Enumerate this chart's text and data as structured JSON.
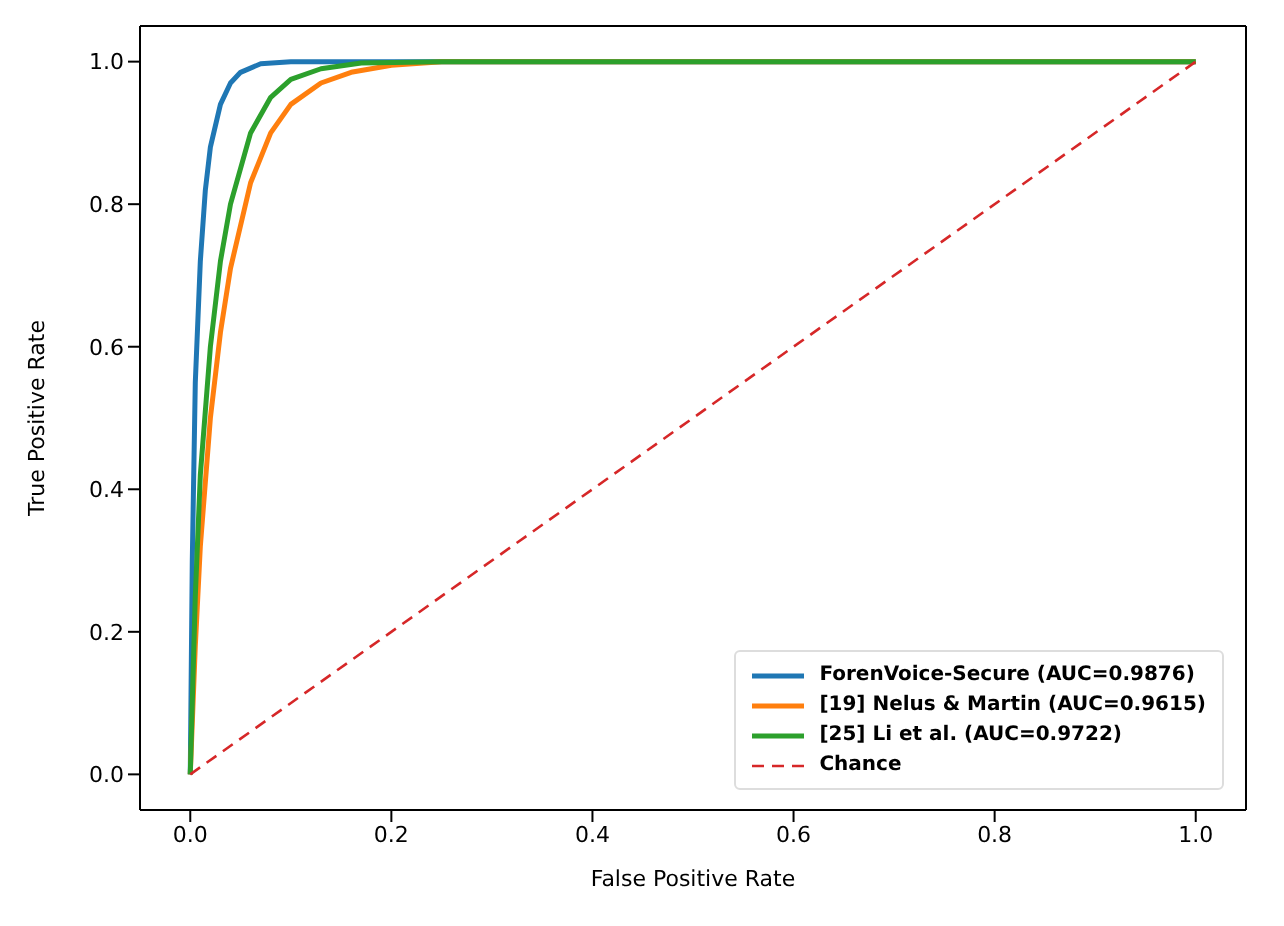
{
  "chart_data": {
    "type": "line",
    "xlabel": "False Positive Rate",
    "ylabel": "True Positive Rate",
    "xlim": [
      -0.05,
      1.05
    ],
    "ylim": [
      -0.05,
      1.05
    ],
    "xticks": [
      {
        "value": 0,
        "label": "0.0"
      },
      {
        "value": 0.2,
        "label": "0.2"
      },
      {
        "value": 0.4,
        "label": "0.4"
      },
      {
        "value": 0.6,
        "label": "0.6"
      },
      {
        "value": 0.8,
        "label": "0.8"
      },
      {
        "value": 1,
        "label": "1.0"
      }
    ],
    "yticks": [
      {
        "value": 0,
        "label": "0.0"
      },
      {
        "value": 0.2,
        "label": "0.2"
      },
      {
        "value": 0.4,
        "label": "0.4"
      },
      {
        "value": 0.6,
        "label": "0.6"
      },
      {
        "value": 0.8,
        "label": "0.8"
      },
      {
        "value": 1,
        "label": "1.0"
      }
    ],
    "grid": false,
    "legend": "bottom right",
    "marker": "none",
    "series": [
      {
        "name": "ForenVoice-Secure (AUC=0.9876)",
        "color": "#1f77b4",
        "line_style": "solid",
        "x": [
          0,
          0.002,
          0.005,
          0.01,
          0.015,
          0.02,
          0.03,
          0.04,
          0.05,
          0.07,
          0.1,
          1
        ],
        "values": [
          0,
          0.3,
          0.55,
          0.72,
          0.82,
          0.88,
          0.94,
          0.97,
          0.985,
          0.997,
          1,
          1
        ]
      },
      {
        "name": "[19] Nelus & Martin (AUC=0.9615)",
        "color": "#ff7f0e",
        "line_style": "solid",
        "x": [
          0,
          0.005,
          0.01,
          0.02,
          0.03,
          0.04,
          0.06,
          0.08,
          0.1,
          0.13,
          0.16,
          0.2,
          0.25,
          1
        ],
        "values": [
          0,
          0.18,
          0.32,
          0.5,
          0.62,
          0.71,
          0.83,
          0.9,
          0.94,
          0.97,
          0.985,
          0.995,
          1,
          1
        ]
      },
      {
        "name": "[25] Li et al. (AUC=0.9722)",
        "color": "#2ca02c",
        "line_style": "solid",
        "x": [
          0,
          0.005,
          0.01,
          0.02,
          0.03,
          0.04,
          0.06,
          0.08,
          0.1,
          0.13,
          0.17,
          0.25,
          1
        ],
        "values": [
          0,
          0.25,
          0.42,
          0.6,
          0.72,
          0.8,
          0.9,
          0.95,
          0.975,
          0.99,
          0.998,
          1,
          1
        ]
      },
      {
        "name": "Chance",
        "color": "#d62728",
        "line_style": "dashed",
        "x": [
          0,
          1
        ],
        "values": [
          0,
          1
        ]
      }
    ]
  }
}
